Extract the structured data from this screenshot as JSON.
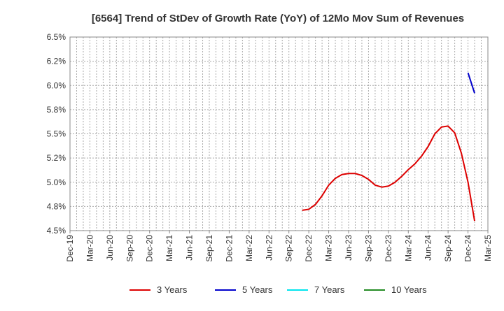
{
  "chart_data": {
    "type": "line",
    "title": "[6564]  Trend of StDev of Growth Rate (YoY) of 12Mo Mov Sum of Revenues",
    "xlabel": "",
    "ylabel": "",
    "grid": true,
    "legend_position": "bottom",
    "x_ticks": [
      "Dec-19",
      "Mar-20",
      "Jun-20",
      "Sep-20",
      "Dec-20",
      "Mar-21",
      "Jun-21",
      "Sep-21",
      "Dec-21",
      "Mar-22",
      "Jun-22",
      "Sep-22",
      "Dec-22",
      "Mar-23",
      "Jun-23",
      "Sep-23",
      "Dec-23",
      "Mar-24",
      "Jun-24",
      "Sep-24",
      "Dec-24",
      "Mar-25"
    ],
    "y_ticks": [
      "4.5%",
      "4.8%",
      "5.0%",
      "5.2%",
      "5.5%",
      "5.8%",
      "6.0%",
      "6.2%",
      "6.5%"
    ],
    "ylim": [
      4.5,
      6.5
    ],
    "series": [
      {
        "name": "3 Years",
        "color": "#dd0000",
        "points": [
          [
            "Nov-22",
            4.71
          ],
          [
            "Dec-22",
            4.72
          ],
          [
            "Jan-23",
            4.77
          ],
          [
            "Feb-23",
            4.86
          ],
          [
            "Mar-23",
            4.97
          ],
          [
            "Apr-23",
            5.04
          ],
          [
            "May-23",
            5.08
          ],
          [
            "Jun-23",
            5.09
          ],
          [
            "Jul-23",
            5.09
          ],
          [
            "Aug-23",
            5.07
          ],
          [
            "Sep-23",
            5.03
          ],
          [
            "Oct-23",
            4.97
          ],
          [
            "Nov-23",
            4.95
          ],
          [
            "Dec-23",
            4.96
          ],
          [
            "Jan-24",
            5.0
          ],
          [
            "Feb-24",
            5.06
          ],
          [
            "Mar-24",
            5.13
          ],
          [
            "Apr-24",
            5.19
          ],
          [
            "May-24",
            5.27
          ],
          [
            "Jun-24",
            5.37
          ],
          [
            "Jul-24",
            5.5
          ],
          [
            "Aug-24",
            5.57
          ],
          [
            "Sep-24",
            5.58
          ],
          [
            "Oct-24",
            5.51
          ],
          [
            "Nov-24",
            5.3
          ],
          [
            "Dec-24",
            5.0
          ],
          [
            "Jan-25",
            4.6
          ]
        ]
      },
      {
        "name": "5 Years",
        "color": "#0000cc",
        "points": [
          [
            "Dec-24",
            6.13
          ],
          [
            "Jan-25",
            5.92
          ]
        ]
      },
      {
        "name": "7 Years",
        "color": "#00e5ee",
        "points": []
      },
      {
        "name": "10 Years",
        "color": "#228b22",
        "points": []
      }
    ]
  }
}
